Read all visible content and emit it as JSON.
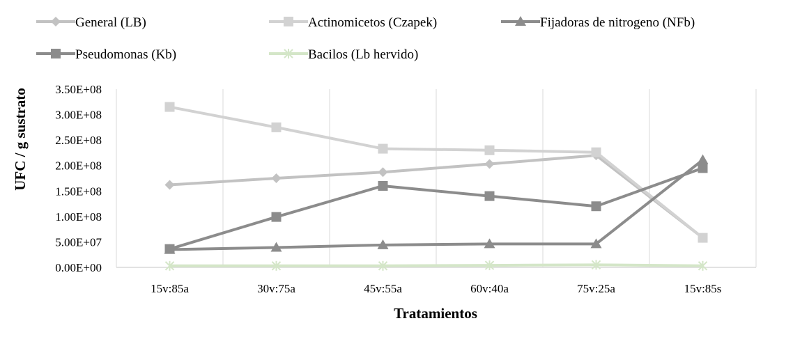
{
  "chart_data": {
    "type": "line",
    "title": "",
    "xlabel": "Tratamientos",
    "ylabel": "UFC / g sustrato",
    "categories": [
      "15v:85a",
      "30v:75a",
      "45v:55a",
      "60v:40a",
      "75v:25a",
      "15v:85s"
    ],
    "ylim": [
      0,
      350000000
    ],
    "y_ticks": [
      {
        "value": 0,
        "label": "0.00E+00"
      },
      {
        "value": 50000000,
        "label": "5.00E+07"
      },
      {
        "value": 100000000,
        "label": "1.00E+08"
      },
      {
        "value": 150000000,
        "label": "1.50E+08"
      },
      {
        "value": 200000000,
        "label": "2.00E+08"
      },
      {
        "value": 250000000,
        "label": "2.50E+08"
      },
      {
        "value": 300000000,
        "label": "3.00E+08"
      },
      {
        "value": 350000000,
        "label": "3.50E+08"
      }
    ],
    "grid": "vertical",
    "legend_position": "top",
    "series": [
      {
        "name": "General (LB)",
        "color": "#c2c2c2",
        "marker": "diamond",
        "values": [
          162000000,
          175000000,
          187000000,
          203000000,
          220000000,
          58000000
        ]
      },
      {
        "name": "Actinomicetos (Czapek)",
        "color": "#d2d2d2",
        "marker": "square",
        "values": [
          315000000,
          275000000,
          233000000,
          230000000,
          226000000,
          58000000
        ]
      },
      {
        "name": "Fijadoras de nitrogeno (NFb)",
        "color": "#8c8c8c",
        "marker": "triangle",
        "values": [
          35000000,
          39000000,
          44000000,
          46000000,
          46000000,
          211000000
        ]
      },
      {
        "name": "Pseudomonas (Kb)",
        "color": "#8c8c8c",
        "marker": "square",
        "values": [
          36000000,
          99000000,
          160000000,
          140000000,
          120000000,
          195000000
        ]
      },
      {
        "name": "Bacilos (Lb hervido)",
        "color": "#d4e6c8",
        "marker": "star",
        "values": [
          3000000,
          3000000,
          3000000,
          4000000,
          5000000,
          3000000
        ]
      }
    ]
  }
}
